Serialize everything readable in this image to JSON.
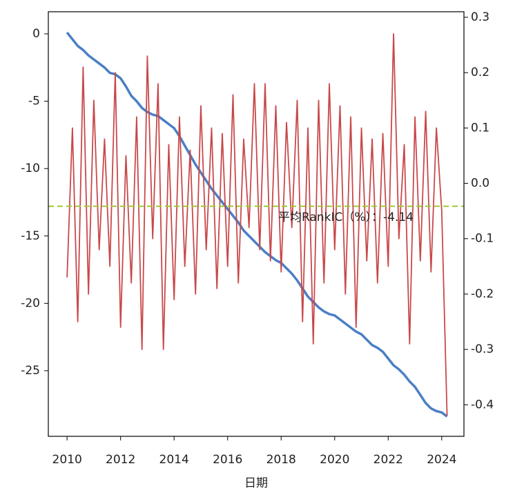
{
  "chart_data": {
    "type": "line",
    "xlabel": "日期",
    "x": [
      2010.0,
      2010.2,
      2010.4,
      2010.6,
      2010.8,
      2011.0,
      2011.2,
      2011.4,
      2011.6,
      2011.8,
      2012.0,
      2012.2,
      2012.4,
      2012.6,
      2012.8,
      2013.0,
      2013.2,
      2013.4,
      2013.6,
      2013.8,
      2014.0,
      2014.2,
      2014.4,
      2014.6,
      2014.8,
      2015.0,
      2015.2,
      2015.4,
      2015.6,
      2015.8,
      2016.0,
      2016.2,
      2016.4,
      2016.6,
      2016.8,
      2017.0,
      2017.2,
      2017.4,
      2017.6,
      2017.8,
      2018.0,
      2018.2,
      2018.4,
      2018.6,
      2018.8,
      2019.0,
      2019.2,
      2019.4,
      2019.6,
      2019.8,
      2020.0,
      2020.2,
      2020.4,
      2020.6,
      2020.8,
      2021.0,
      2021.2,
      2021.4,
      2021.6,
      2021.8,
      2022.0,
      2022.2,
      2022.4,
      2022.6,
      2022.8,
      2023.0,
      2023.2,
      2023.4,
      2023.6,
      2023.8,
      2024.0,
      2024.2
    ],
    "series": [
      {
        "color": "#4a7fc4",
        "axis": "y",
        "values": [
          0.1,
          -0.4,
          -0.9,
          -1.2,
          -1.6,
          -1.9,
          -2.2,
          -2.5,
          -2.9,
          -3.0,
          -3.3,
          -3.9,
          -4.6,
          -5.0,
          -5.5,
          -5.8,
          -6.0,
          -6.1,
          -6.4,
          -6.7,
          -7.0,
          -7.6,
          -8.3,
          -9.0,
          -9.7,
          -10.3,
          -10.9,
          -11.5,
          -12.0,
          -12.5,
          -13.0,
          -13.5,
          -14.0,
          -14.6,
          -15.0,
          -15.4,
          -15.8,
          -16.2,
          -16.5,
          -16.8,
          -17.0,
          -17.4,
          -17.8,
          -18.3,
          -18.9,
          -19.5,
          -19.9,
          -20.3,
          -20.6,
          -20.8,
          -20.9,
          -21.2,
          -21.5,
          -21.8,
          -22.1,
          -22.3,
          -22.7,
          -23.1,
          -23.3,
          -23.6,
          -24.1,
          -24.6,
          -24.9,
          -25.3,
          -25.8,
          -26.2,
          -26.8,
          -27.4,
          -27.8,
          -28.0,
          -28.1,
          -28.4
        ]
      },
      {
        "color": "#c8484a",
        "axis": "y2",
        "values": [
          -0.17,
          0.1,
          -0.25,
          0.21,
          -0.2,
          0.15,
          -0.12,
          0.08,
          -0.15,
          0.2,
          -0.26,
          0.05,
          -0.18,
          0.12,
          -0.3,
          0.23,
          -0.1,
          0.18,
          -0.3,
          0.07,
          -0.21,
          0.12,
          -0.15,
          0.06,
          -0.2,
          0.14,
          -0.12,
          0.1,
          -0.19,
          0.09,
          -0.15,
          0.16,
          -0.18,
          0.08,
          -0.08,
          0.18,
          -0.12,
          0.18,
          -0.14,
          0.14,
          -0.16,
          0.11,
          -0.08,
          0.15,
          -0.25,
          0.1,
          -0.29,
          0.15,
          -0.18,
          0.18,
          -0.12,
          0.14,
          -0.2,
          0.12,
          -0.26,
          0.1,
          -0.14,
          0.08,
          -0.18,
          0.09,
          -0.15,
          0.27,
          -0.1,
          0.07,
          -0.29,
          0.12,
          -0.14,
          0.13,
          -0.16,
          0.1,
          -0.05,
          -0.42
        ]
      }
    ],
    "hline": {
      "value": -0.0414,
      "axis": "y2",
      "color": "#9acd32",
      "style": "dashed"
    },
    "annotation": "平均RankIC（%）：-4.14",
    "xlim": [
      2009.3,
      2024.83
    ],
    "xticks": [
      2010,
      2012,
      2014,
      2016,
      2018,
      2020,
      2022,
      2024
    ],
    "ylim": [
      -29.87,
      1.64
    ],
    "yticks": [
      0,
      -5,
      -10,
      -15,
      -20,
      -25
    ],
    "y2lim": [
      -0.457,
      0.31
    ],
    "y2ticks": [
      0.3,
      0.2,
      0.1,
      {
        "value": 0,
        "label": "0.0"
      },
      -0.1,
      -0.2,
      -0.3,
      -0.4
    ]
  }
}
